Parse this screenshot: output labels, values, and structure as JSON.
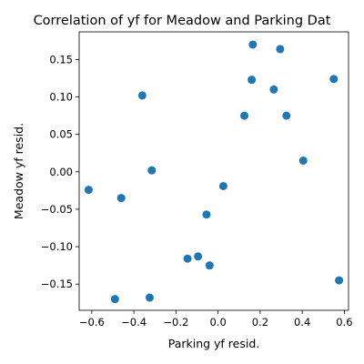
{
  "chart_data": {
    "type": "scatter",
    "title": "Correlation of yf for Meadow and Parking Dat",
    "xlabel": "Parking yf resid.",
    "ylabel": "Meadow yf resid.",
    "xlim": [
      -0.66,
      0.62
    ],
    "ylim": [
      -0.185,
      0.187
    ],
    "x_ticks": [
      -0.6,
      -0.4,
      -0.2,
      0.0,
      0.2,
      0.4,
      0.6
    ],
    "x_tick_labels": [
      "−0.6",
      "−0.4",
      "−0.2",
      "0.0",
      "0.2",
      "0.4",
      "0.6"
    ],
    "y_ticks": [
      -0.15,
      -0.1,
      -0.05,
      0.0,
      0.05,
      0.1,
      0.15
    ],
    "y_tick_labels": [
      "−0.15",
      "−0.10",
      "−0.05",
      "0.00",
      "0.05",
      "0.10",
      "0.15"
    ],
    "grid": false,
    "marker_color": "#1f77b4",
    "points": [
      {
        "x": 0.165,
        "y": 0.17
      },
      {
        "x": 0.295,
        "y": 0.164
      },
      {
        "x": 0.16,
        "y": 0.123
      },
      {
        "x": 0.55,
        "y": 0.124
      },
      {
        "x": 0.265,
        "y": 0.11
      },
      {
        "x": -0.36,
        "y": 0.102
      },
      {
        "x": 0.125,
        "y": 0.075
      },
      {
        "x": 0.325,
        "y": 0.075
      },
      {
        "x": 0.405,
        "y": 0.015
      },
      {
        "x": -0.315,
        "y": 0.002
      },
      {
        "x": 0.025,
        "y": -0.019
      },
      {
        "x": -0.615,
        "y": -0.024
      },
      {
        "x": -0.46,
        "y": -0.035
      },
      {
        "x": -0.055,
        "y": -0.057
      },
      {
        "x": -0.095,
        "y": -0.113
      },
      {
        "x": -0.145,
        "y": -0.116
      },
      {
        "x": -0.04,
        "y": -0.125
      },
      {
        "x": 0.575,
        "y": -0.145
      },
      {
        "x": -0.325,
        "y": -0.168
      },
      {
        "x": -0.49,
        "y": -0.17
      }
    ]
  }
}
